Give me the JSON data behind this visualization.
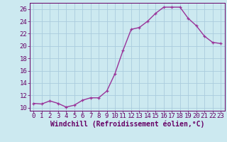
{
  "x": [
    0,
    1,
    2,
    3,
    4,
    5,
    6,
    7,
    8,
    9,
    10,
    11,
    12,
    13,
    14,
    15,
    16,
    17,
    18,
    19,
    20,
    21,
    22,
    23
  ],
  "y": [
    10.7,
    10.6,
    11.1,
    10.7,
    10.1,
    10.4,
    11.2,
    11.6,
    11.6,
    12.7,
    15.5,
    19.3,
    22.7,
    23.0,
    24.0,
    25.3,
    26.3,
    26.3,
    26.3,
    24.5,
    23.3,
    21.6,
    20.6,
    20.4
  ],
  "line_color": "#993399",
  "marker": "+",
  "marker_size": 3.5,
  "linewidth": 1.0,
  "bg_color": "#cce9f0",
  "grid_color": "#aaccdd",
  "xlabel": "Windchill (Refroidissement éolien,°C)",
  "xlabel_color": "#660066",
  "tick_color": "#660066",
  "ylim": [
    9.5,
    27
  ],
  "xlim": [
    -0.5,
    23.5
  ],
  "yticks": [
    10,
    12,
    14,
    16,
    18,
    20,
    22,
    24,
    26
  ],
  "xticks": [
    0,
    1,
    2,
    3,
    4,
    5,
    6,
    7,
    8,
    9,
    10,
    11,
    12,
    13,
    14,
    15,
    16,
    17,
    18,
    19,
    20,
    21,
    22,
    23
  ],
  "tick_fontsize": 6.5,
  "xlabel_fontsize": 7.0
}
